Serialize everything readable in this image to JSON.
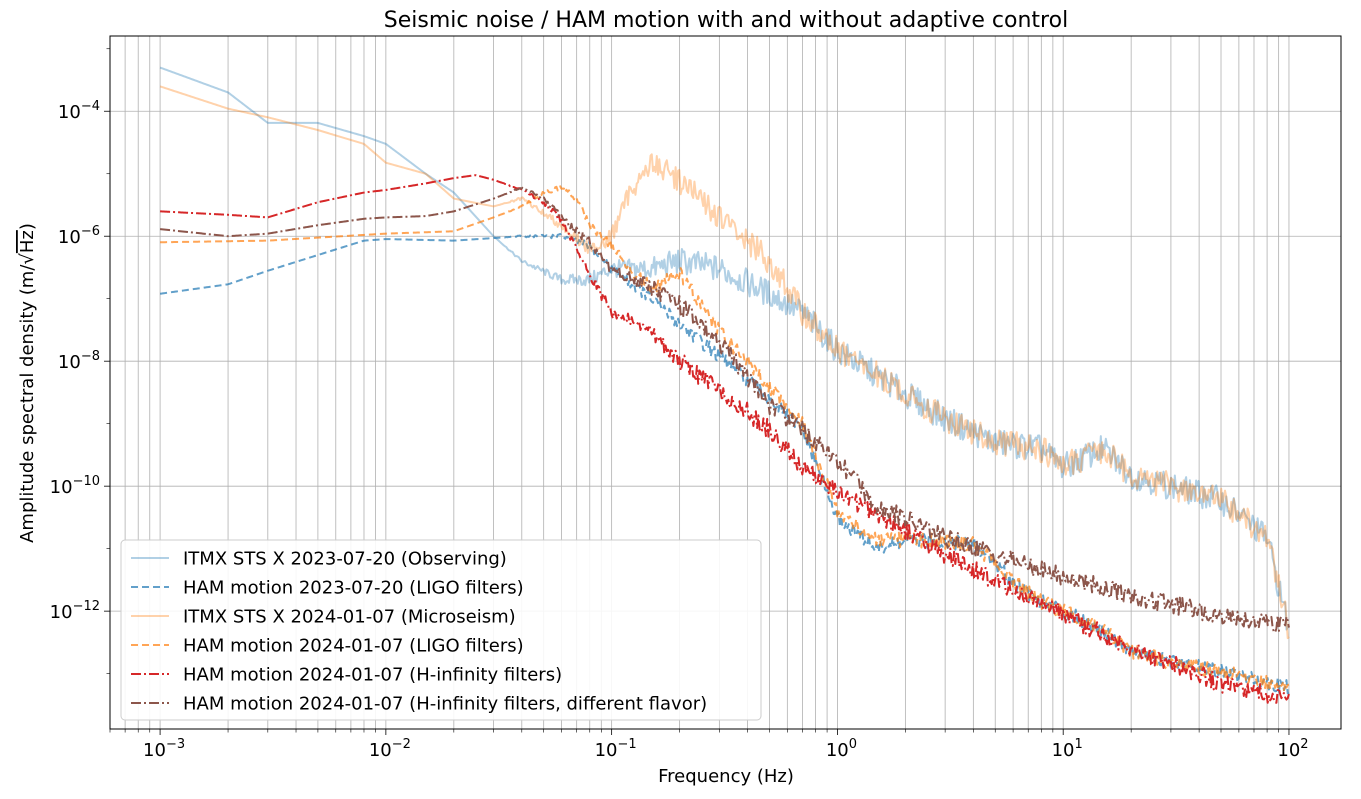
{
  "chart_data": {
    "type": "line",
    "title": "Seismic noise / HAM motion with and without adaptive control",
    "xlabel": "Frequency (Hz)",
    "ylabel": "Amplitude spectral density (m/√Hz)",
    "ylabel_parts": {
      "prefix": "Amplitude spectral density (m/",
      "radical": "√",
      "radicand": "Hz",
      "suffix": ")"
    },
    "x_scale": "log",
    "y_scale": "log",
    "xlim": [
      0.0006,
      170
    ],
    "ylim": [
      1.3e-14,
      0.0016
    ],
    "x_ticks": [
      {
        "base": "10",
        "exp": "−3",
        "value": 0.001
      },
      {
        "base": "10",
        "exp": "−2",
        "value": 0.01
      },
      {
        "base": "10",
        "exp": "−1",
        "value": 0.1
      },
      {
        "base": "10",
        "exp": "0",
        "value": 1
      },
      {
        "base": "10",
        "exp": "1",
        "value": 10
      },
      {
        "base": "10",
        "exp": "2",
        "value": 100
      }
    ],
    "y_ticks": [
      {
        "base": "10",
        "exp": "−12",
        "value": 1e-12
      },
      {
        "base": "10",
        "exp": "−10",
        "value": 1e-10
      },
      {
        "base": "10",
        "exp": "−8",
        "value": 1e-08
      },
      {
        "base": "10",
        "exp": "−6",
        "value": 1e-06
      },
      {
        "base": "10",
        "exp": "−4",
        "value": 0.0001
      }
    ],
    "grid": true,
    "legend_position": "lower-left",
    "series": [
      {
        "name": "ITMX STS X 2023-07-20 (Observing)",
        "color": "#1f77b4",
        "opacity": 0.35,
        "dash": "solid",
        "noise_scale": 0.22,
        "x": [
          0.001,
          0.002,
          0.003,
          0.005,
          0.008,
          0.01,
          0.015,
          0.02,
          0.03,
          0.04,
          0.06,
          0.08,
          0.1,
          0.15,
          0.2,
          0.3,
          0.5,
          0.7,
          1,
          2,
          3,
          5,
          8,
          10,
          15,
          20,
          30,
          50,
          80,
          100
        ],
        "y": [
          0.0005,
          0.0002,
          6.5e-05,
          6.5e-05,
          4e-05,
          3e-05,
          1e-05,
          5e-06,
          1e-06,
          4e-07,
          2e-07,
          2e-07,
          3e-07,
          3e-07,
          4e-07,
          3e-07,
          1.2e-07,
          6e-08,
          1.5e-08,
          3e-09,
          1.2e-09,
          5e-10,
          4e-10,
          2e-10,
          4e-10,
          1.5e-10,
          1e-10,
          6e-11,
          1.5e-11,
          5e-13
        ]
      },
      {
        "name": "HAM motion 2023-07-20 (LIGO filters)",
        "color": "#1f77b4",
        "opacity": 0.7,
        "dash": "7,4",
        "noise_scale": 0.12,
        "x": [
          0.001,
          0.002,
          0.003,
          0.005,
          0.008,
          0.01,
          0.02,
          0.04,
          0.06,
          0.08,
          0.1,
          0.15,
          0.2,
          0.3,
          0.5,
          0.7,
          1,
          1.5,
          2,
          3,
          4,
          6,
          8,
          10,
          15,
          20,
          30,
          50,
          100
        ],
        "y": [
          1.2e-07,
          1.7e-07,
          2.8e-07,
          5e-07,
          8.5e-07,
          9e-07,
          8.5e-07,
          1e-06,
          1e-06,
          7e-07,
          3e-07,
          1e-07,
          4e-08,
          1.2e-08,
          2.5e-09,
          8e-10,
          3e-11,
          1e-11,
          1.3e-11,
          1.3e-11,
          1.2e-11,
          3e-12,
          1.4e-12,
          1e-12,
          5e-13,
          2.3e-13,
          1.5e-13,
          1.1e-13,
          6e-14
        ]
      },
      {
        "name": "ITMX STS X 2024-01-07 (Microseism)",
        "color": "#ff7f0e",
        "opacity": 0.35,
        "dash": "solid",
        "noise_scale": 0.22,
        "x": [
          0.001,
          0.002,
          0.003,
          0.005,
          0.008,
          0.01,
          0.015,
          0.02,
          0.03,
          0.04,
          0.06,
          0.08,
          0.1,
          0.12,
          0.15,
          0.2,
          0.3,
          0.5,
          0.7,
          1,
          2,
          3,
          5,
          8,
          10,
          15,
          20,
          30,
          50,
          80,
          100
        ],
        "y": [
          0.00025,
          0.00011,
          8e-05,
          5e-05,
          3e-05,
          1.5e-05,
          1e-05,
          4e-06,
          3e-06,
          4e-06,
          1.5e-06,
          6e-07,
          1e-06,
          5e-06,
          1.5e-05,
          8e-06,
          2e-06,
          4e-07,
          6e-08,
          1.5e-08,
          3e-09,
          1.2e-09,
          5e-10,
          4e-10,
          2e-10,
          4e-10,
          1.5e-10,
          1e-10,
          6e-11,
          1.5e-11,
          5e-13
        ]
      },
      {
        "name": "HAM motion 2024-01-07 (LIGO filters)",
        "color": "#ff7f0e",
        "opacity": 0.7,
        "dash": "7,4",
        "noise_scale": 0.12,
        "x": [
          0.001,
          0.003,
          0.005,
          0.01,
          0.02,
          0.03,
          0.04,
          0.05,
          0.06,
          0.07,
          0.08,
          0.1,
          0.12,
          0.15,
          0.2,
          0.3,
          0.5,
          0.7,
          1,
          1.5,
          2,
          3,
          4,
          6,
          8,
          10,
          15,
          20,
          30,
          50,
          100
        ],
        "y": [
          8e-07,
          8.5e-07,
          9.5e-07,
          1.1e-06,
          1.2e-06,
          2e-06,
          3e-06,
          5e-06,
          6e-06,
          4e-06,
          1.5e-06,
          7e-07,
          3e-07,
          1.5e-07,
          2.5e-07,
          3e-08,
          4e-09,
          1e-09,
          4e-11,
          1.3e-11,
          1.4e-11,
          1.3e-11,
          1.2e-11,
          3e-12,
          1.4e-12,
          1e-12,
          5e-13,
          2.3e-13,
          1.5e-13,
          1.1e-13,
          6e-14
        ]
      },
      {
        "name": "HAM motion 2024-01-07 (H-infinity filters)",
        "color": "#d62728",
        "opacity": 1,
        "dash": "10,3,2,3",
        "noise_scale": 0.15,
        "x": [
          0.001,
          0.002,
          0.003,
          0.005,
          0.008,
          0.01,
          0.015,
          0.02,
          0.025,
          0.03,
          0.04,
          0.05,
          0.06,
          0.07,
          0.08,
          0.1,
          0.15,
          0.2,
          0.3,
          0.5,
          0.7,
          1,
          2,
          3,
          5,
          10,
          20,
          50,
          100
        ],
        "y": [
          2.5e-06,
          2.2e-06,
          2e-06,
          3.5e-06,
          5e-06,
          5.5e-06,
          7e-06,
          8.5e-06,
          9.5e-06,
          8e-06,
          5.5e-06,
          3.5e-06,
          1.8e-06,
          6e-07,
          2.5e-07,
          6e-08,
          3e-08,
          1e-08,
          3.5e-09,
          8e-10,
          2e-10,
          8e-11,
          2e-11,
          8e-12,
          3e-12,
          9e-13,
          2.5e-13,
          7e-14,
          4e-14
        ]
      },
      {
        "name": "HAM motion 2024-01-07 (H-infinity filters, different flavor)",
        "color": "#8c564b",
        "opacity": 1,
        "dash": "10,3,2,3",
        "noise_scale": 0.15,
        "x": [
          0.001,
          0.002,
          0.003,
          0.005,
          0.008,
          0.01,
          0.015,
          0.02,
          0.03,
          0.04,
          0.05,
          0.06,
          0.08,
          0.1,
          0.15,
          0.2,
          0.3,
          0.5,
          0.7,
          1,
          1.5,
          2,
          3,
          5,
          10,
          20,
          50,
          100
        ],
        "y": [
          1.3e-06,
          1e-06,
          1.1e-06,
          1.5e-06,
          1.9e-06,
          2e-06,
          2.1e-06,
          2.5e-06,
          4e-06,
          6e-06,
          4e-06,
          2e-06,
          8e-07,
          3e-07,
          1.5e-07,
          8e-08,
          2e-08,
          2e-09,
          8e-10,
          2.5e-10,
          5e-11,
          3e-11,
          1.5e-11,
          8e-12,
          3.5e-12,
          1.8e-12,
          8.5e-13,
          6e-13
        ]
      }
    ]
  }
}
